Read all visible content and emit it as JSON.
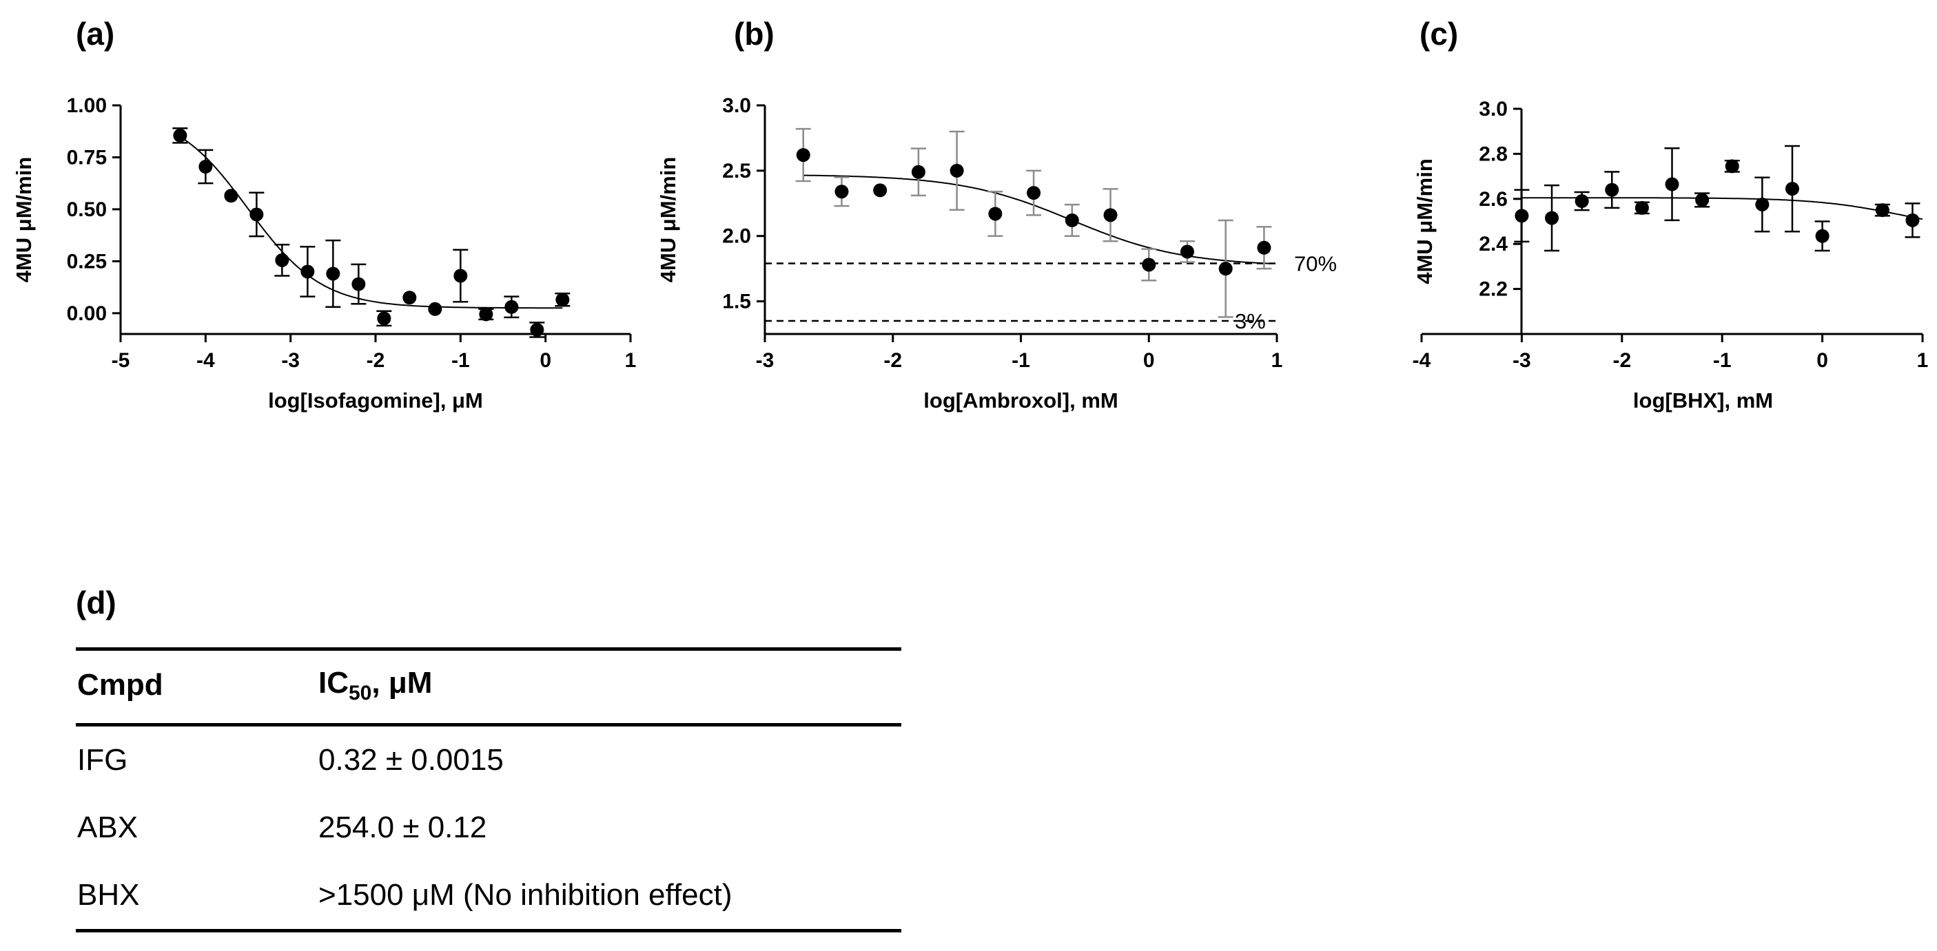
{
  "chart_data": [
    {
      "panel": "(a)",
      "type": "scatter",
      "xlabel": "log[Isofagomine], μM",
      "ylabel": "4MU μM/min",
      "xlim": [
        -5,
        1
      ],
      "ylim": [
        -0.1,
        1.0
      ],
      "xticks": [
        -5,
        -4,
        -3,
        -2,
        -1,
        0,
        1
      ],
      "yticks": [
        0.0,
        0.25,
        0.5,
        0.75,
        1.0
      ],
      "ytick_labels": [
        "0.00",
        "0.25",
        "0.50",
        "0.75",
        "1.00"
      ],
      "points": [
        {
          "x": -4.3,
          "y": 0.855,
          "err": 0.035
        },
        {
          "x": -4.0,
          "y": 0.705,
          "err": 0.08
        },
        {
          "x": -3.7,
          "y": 0.565,
          "err": 0.0
        },
        {
          "x": -3.4,
          "y": 0.475,
          "err": 0.105
        },
        {
          "x": -3.1,
          "y": 0.255,
          "err": 0.075
        },
        {
          "x": -2.8,
          "y": 0.2,
          "err": 0.12
        },
        {
          "x": -2.5,
          "y": 0.19,
          "err": 0.16
        },
        {
          "x": -2.2,
          "y": 0.14,
          "err": 0.095
        },
        {
          "x": -1.9,
          "y": -0.025,
          "err": 0.035
        },
        {
          "x": -1.6,
          "y": 0.075,
          "err": 0.0
        },
        {
          "x": -1.3,
          "y": 0.02,
          "err": 0.0
        },
        {
          "x": -1.0,
          "y": 0.18,
          "err": 0.125
        },
        {
          "x": -0.7,
          "y": -0.005,
          "err": 0.025
        },
        {
          "x": -0.4,
          "y": 0.03,
          "err": 0.05
        },
        {
          "x": -0.1,
          "y": -0.08,
          "err": 0.035
        },
        {
          "x": 0.2,
          "y": 0.065,
          "err": 0.03
        }
      ],
      "fit": {
        "top": 0.98,
        "bottom": 0.025,
        "logIC50": -3.5,
        "hill": 1.0,
        "xfrom": -4.35,
        "xto": 0.2
      },
      "reference_lines": []
    },
    {
      "panel": "(b)",
      "type": "scatter",
      "xlabel": "log[Ambroxol], mM",
      "ylabel": "4MU μM/min",
      "xlim": [
        -3,
        1
      ],
      "ylim": [
        1.25,
        3.0
      ],
      "xticks": [
        -3,
        -2,
        -1,
        0,
        1
      ],
      "yticks": [
        1.5,
        2.0,
        2.5,
        3.0
      ],
      "ytick_labels": [
        "1.5",
        "2.0",
        "2.5",
        "3.0"
      ],
      "points": [
        {
          "x": -2.7,
          "y": 2.62,
          "err": 0.2
        },
        {
          "x": -2.4,
          "y": 2.34,
          "err": 0.11
        },
        {
          "x": -2.1,
          "y": 2.35,
          "err": 0.0
        },
        {
          "x": -1.8,
          "y": 2.49,
          "err": 0.18
        },
        {
          "x": -1.5,
          "y": 2.5,
          "err": 0.3
        },
        {
          "x": -1.2,
          "y": 2.17,
          "err": 0.17
        },
        {
          "x": -0.9,
          "y": 2.33,
          "err": 0.17
        },
        {
          "x": -0.6,
          "y": 2.12,
          "err": 0.12
        },
        {
          "x": -0.3,
          "y": 2.16,
          "err": 0.2
        },
        {
          "x": 0.0,
          "y": 1.78,
          "err": 0.12
        },
        {
          "x": 0.3,
          "y": 1.88,
          "err": 0.08
        },
        {
          "x": 0.6,
          "y": 1.75,
          "err": 0.37
        },
        {
          "x": 0.9,
          "y": 1.91,
          "err": 0.16
        }
      ],
      "fit": {
        "top": 2.47,
        "bottom": 1.77,
        "logIC50": -0.6,
        "hill": 1.0,
        "xfrom": -2.7,
        "xto": 0.95
      },
      "reference_lines": [
        {
          "y": 1.79,
          "label": "70%"
        },
        {
          "y": 1.35,
          "label": "3%"
        }
      ]
    },
    {
      "panel": "(c)",
      "type": "scatter",
      "xlabel": "log[BHX], mM",
      "ylabel": "4MU μM/min",
      "xlim": [
        -4,
        1
      ],
      "ylim": [
        2.0,
        3.0
      ],
      "xticks": [
        -4,
        -3,
        -2,
        -1,
        0,
        1
      ],
      "yticks": [
        2.2,
        2.4,
        2.6,
        2.8,
        3.0
      ],
      "ytick_labels": [
        "2.2",
        "2.4",
        "2.6",
        "2.8",
        "3.0"
      ],
      "points": [
        {
          "x": -3.0,
          "y": 2.525,
          "err": 0.115
        },
        {
          "x": -2.7,
          "y": 2.515,
          "err": 0.145
        },
        {
          "x": -2.4,
          "y": 2.59,
          "err": 0.04
        },
        {
          "x": -2.1,
          "y": 2.64,
          "err": 0.08
        },
        {
          "x": -1.8,
          "y": 2.56,
          "err": 0.025
        },
        {
          "x": -1.5,
          "y": 2.665,
          "err": 0.16
        },
        {
          "x": -1.2,
          "y": 2.595,
          "err": 0.03
        },
        {
          "x": -0.9,
          "y": 2.745,
          "err": 0.025
        },
        {
          "x": -0.6,
          "y": 2.575,
          "err": 0.12
        },
        {
          "x": -0.3,
          "y": 2.645,
          "err": 0.19
        },
        {
          "x": 0.0,
          "y": 2.435,
          "err": 0.065
        },
        {
          "x": 0.6,
          "y": 2.55,
          "err": 0.025
        },
        {
          "x": 0.9,
          "y": 2.505,
          "err": 0.075
        }
      ],
      "fit": {
        "top": 2.605,
        "bottom": 2.45,
        "logIC50": 0.8,
        "hill": 1.0,
        "xfrom": -3.0,
        "xto": 1.0
      },
      "reference_lines": []
    }
  ],
  "table": {
    "panel": "(d)",
    "headers": {
      "cmpd": "Cmpd",
      "ic50_main": "IC",
      "ic50_sub": "50",
      "ic50_unit": ", μM"
    },
    "rows": [
      {
        "cmpd": "IFG",
        "value": "0.32 ± 0.0015"
      },
      {
        "cmpd": "ABX",
        "value": "254.0 ± 0.12"
      },
      {
        "cmpd": "BHX",
        "value": ">1500 μM (No inhibition effect)"
      }
    ]
  }
}
